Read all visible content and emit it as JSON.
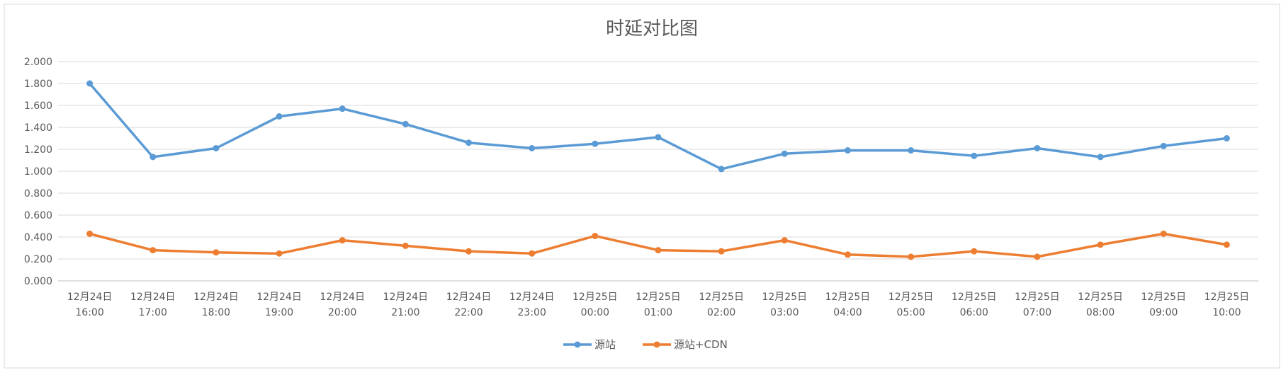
{
  "chart_data": {
    "type": "line",
    "title": "时延对比图",
    "xlabel": "",
    "ylabel": "",
    "ylim": [
      0,
      2
    ],
    "y_ticks": [
      "0.000",
      "0.200",
      "0.400",
      "0.600",
      "0.800",
      "1.000",
      "1.200",
      "1.400",
      "1.600",
      "1.800",
      "2.000"
    ],
    "categories": [
      [
        "12月24日",
        "16:00"
      ],
      [
        "12月24日",
        "17:00"
      ],
      [
        "12月24日",
        "18:00"
      ],
      [
        "12月24日",
        "19:00"
      ],
      [
        "12月24日",
        "20:00"
      ],
      [
        "12月24日",
        "21:00"
      ],
      [
        "12月24日",
        "22:00"
      ],
      [
        "12月24日",
        "23:00"
      ],
      [
        "12月25日",
        "00:00"
      ],
      [
        "12月25日",
        "01:00"
      ],
      [
        "12月25日",
        "02:00"
      ],
      [
        "12月25日",
        "03:00"
      ],
      [
        "12月25日",
        "04:00"
      ],
      [
        "12月25日",
        "05:00"
      ],
      [
        "12月25日",
        "06:00"
      ],
      [
        "12月25日",
        "07:00"
      ],
      [
        "12月25日",
        "08:00"
      ],
      [
        "12月25日",
        "09:00"
      ],
      [
        "12月25日",
        "10:00"
      ]
    ],
    "series": [
      {
        "name": "源站",
        "color": "#5B9BD5",
        "values": [
          1.8,
          1.13,
          1.21,
          1.5,
          1.57,
          1.43,
          1.26,
          1.21,
          1.25,
          1.31,
          1.02,
          1.16,
          1.19,
          1.19,
          1.14,
          1.21,
          1.13,
          1.23,
          1.3
        ]
      },
      {
        "name": "源站+CDN",
        "color": "#ED7D31",
        "values": [
          0.43,
          0.28,
          0.26,
          0.25,
          0.37,
          0.32,
          0.27,
          0.25,
          0.41,
          0.28,
          0.27,
          0.37,
          0.24,
          0.22,
          0.27,
          0.22,
          0.33,
          0.43,
          0.33
        ]
      }
    ],
    "grid": true,
    "legend_position": "bottom"
  }
}
